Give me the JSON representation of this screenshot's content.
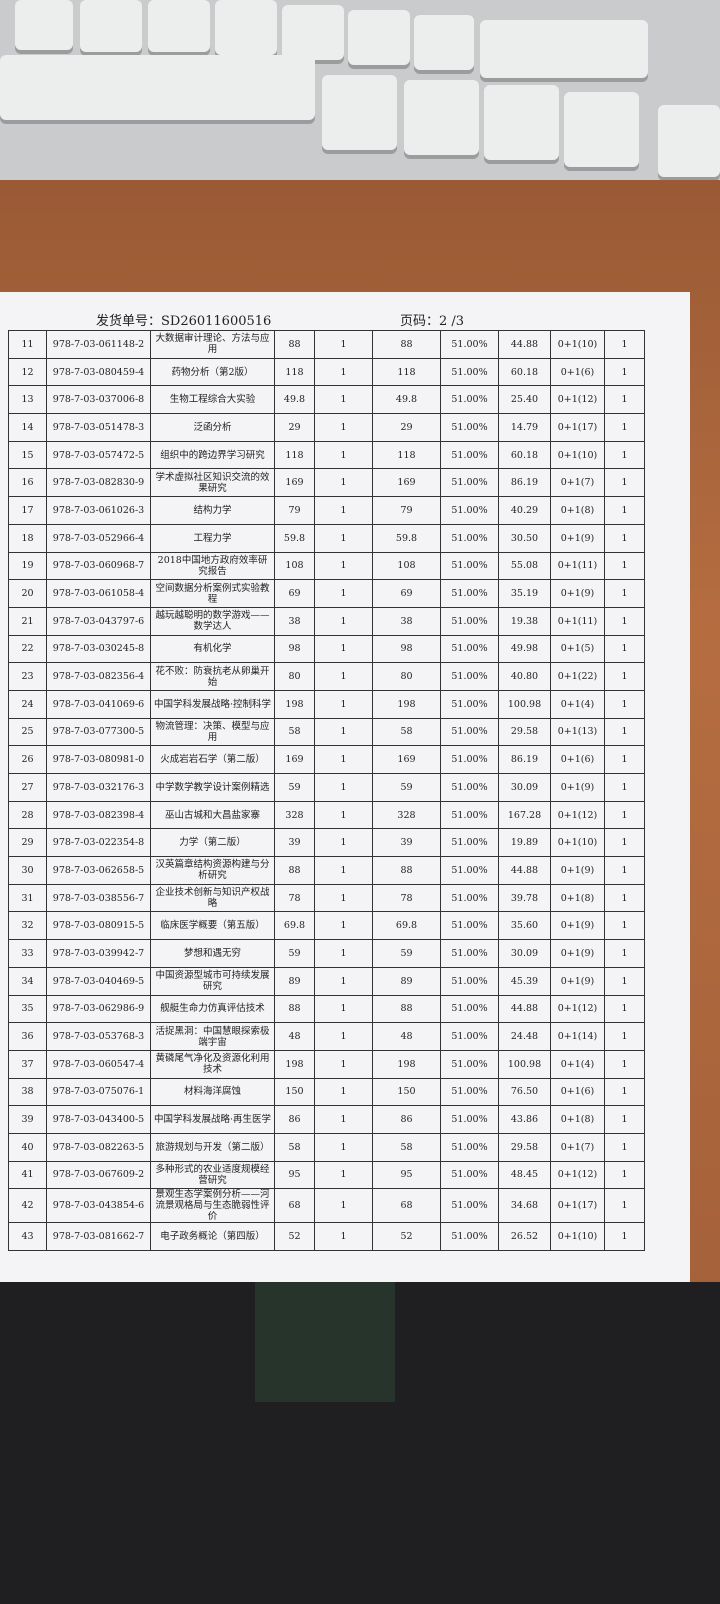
{
  "header": {
    "order_no": "发货单号：SD26011600516",
    "page": "页码：2 /3"
  },
  "table": {
    "rows": [
      [
        "11",
        "978-7-03-061148-2",
        "大数据审计理论、方法与应用",
        "88",
        "1",
        "88",
        "51.00%",
        "44.88",
        "0+1(10)",
        "1"
      ],
      [
        "12",
        "978-7-03-080459-4",
        "药物分析（第2版）",
        "118",
        "1",
        "118",
        "51.00%",
        "60.18",
        "0+1(6)",
        "1"
      ],
      [
        "13",
        "978-7-03-037006-8",
        "生物工程综合大实验",
        "49.8",
        "1",
        "49.8",
        "51.00%",
        "25.40",
        "0+1(12)",
        "1"
      ],
      [
        "14",
        "978-7-03-051478-3",
        "泛函分析",
        "29",
        "1",
        "29",
        "51.00%",
        "14.79",
        "0+1(17)",
        "1"
      ],
      [
        "15",
        "978-7-03-057472-5",
        "组织中的跨边界学习研究",
        "118",
        "1",
        "118",
        "51.00%",
        "60.18",
        "0+1(10)",
        "1"
      ],
      [
        "16",
        "978-7-03-082830-9",
        "学术虚拟社区知识交流的效果研究",
        "169",
        "1",
        "169",
        "51.00%",
        "86.19",
        "0+1(7)",
        "1"
      ],
      [
        "17",
        "978-7-03-061026-3",
        "结构力学",
        "79",
        "1",
        "79",
        "51.00%",
        "40.29",
        "0+1(8)",
        "1"
      ],
      [
        "18",
        "978-7-03-052966-4",
        "工程力学",
        "59.8",
        "1",
        "59.8",
        "51.00%",
        "30.50",
        "0+1(9)",
        "1"
      ],
      [
        "19",
        "978-7-03-060968-7",
        "2018中国地方政府效率研究报告",
        "108",
        "1",
        "108",
        "51.00%",
        "55.08",
        "0+1(11)",
        "1"
      ],
      [
        "20",
        "978-7-03-061058-4",
        "空间数据分析案例式实验教程",
        "69",
        "1",
        "69",
        "51.00%",
        "35.19",
        "0+1(9)",
        "1"
      ],
      [
        "21",
        "978-7-03-043797-6",
        "越玩越聪明的数学游戏——数学达人",
        "38",
        "1",
        "38",
        "51.00%",
        "19.38",
        "0+1(11)",
        "1"
      ],
      [
        "22",
        "978-7-03-030245-8",
        "有机化学",
        "98",
        "1",
        "98",
        "51.00%",
        "49.98",
        "0+1(5)",
        "1"
      ],
      [
        "23",
        "978-7-03-082356-4",
        "花不败：防衰抗老从卵巢开始",
        "80",
        "1",
        "80",
        "51.00%",
        "40.80",
        "0+1(22)",
        "1"
      ],
      [
        "24",
        "978-7-03-041069-6",
        "中国学科发展战略·控制科学",
        "198",
        "1",
        "198",
        "51.00%",
        "100.98",
        "0+1(4)",
        "1"
      ],
      [
        "25",
        "978-7-03-077300-5",
        "物流管理：决策、模型与应用",
        "58",
        "1",
        "58",
        "51.00%",
        "29.58",
        "0+1(13)",
        "1"
      ],
      [
        "26",
        "978-7-03-080981-0",
        "火成岩岩石学（第二版）",
        "169",
        "1",
        "169",
        "51.00%",
        "86.19",
        "0+1(6)",
        "1"
      ],
      [
        "27",
        "978-7-03-032176-3",
        "中学数学教学设计案例精选",
        "59",
        "1",
        "59",
        "51.00%",
        "30.09",
        "0+1(9)",
        "1"
      ],
      [
        "28",
        "978-7-03-082398-4",
        "巫山古城和大昌盐家寨",
        "328",
        "1",
        "328",
        "51.00%",
        "167.28",
        "0+1(12)",
        "1"
      ],
      [
        "29",
        "978-7-03-022354-8",
        "力学（第二版）",
        "39",
        "1",
        "39",
        "51.00%",
        "19.89",
        "0+1(10)",
        "1"
      ],
      [
        "30",
        "978-7-03-062658-5",
        "汉英篇章结构资源构建与分析研究",
        "88",
        "1",
        "88",
        "51.00%",
        "44.88",
        "0+1(9)",
        "1"
      ],
      [
        "31",
        "978-7-03-038556-7",
        "企业技术创新与知识产权战略",
        "78",
        "1",
        "78",
        "51.00%",
        "39.78",
        "0+1(8)",
        "1"
      ],
      [
        "32",
        "978-7-03-080915-5",
        "临床医学概要（第五版）",
        "69.8",
        "1",
        "69.8",
        "51.00%",
        "35.60",
        "0+1(9)",
        "1"
      ],
      [
        "33",
        "978-7-03-039942-7",
        "梦想和遇无穷",
        "59",
        "1",
        "59",
        "51.00%",
        "30.09",
        "0+1(9)",
        "1"
      ],
      [
        "34",
        "978-7-03-040469-5",
        "中国资源型城市可持续发展研究",
        "89",
        "1",
        "89",
        "51.00%",
        "45.39",
        "0+1(9)",
        "1"
      ],
      [
        "35",
        "978-7-03-062986-9",
        "舰艇生命力仿真评估技术",
        "88",
        "1",
        "88",
        "51.00%",
        "44.88",
        "0+1(12)",
        "1"
      ],
      [
        "36",
        "978-7-03-053768-3",
        "活捉黑洞：中国慧眼探索极端宇宙",
        "48",
        "1",
        "48",
        "51.00%",
        "24.48",
        "0+1(14)",
        "1"
      ],
      [
        "37",
        "978-7-03-060547-4",
        "黄磷尾气净化及资源化利用技术",
        "198",
        "1",
        "198",
        "51.00%",
        "100.98",
        "0+1(4)",
        "1"
      ],
      [
        "38",
        "978-7-03-075076-1",
        "材料海洋腐蚀",
        "150",
        "1",
        "150",
        "51.00%",
        "76.50",
        "0+1(6)",
        "1"
      ],
      [
        "39",
        "978-7-03-043400-5",
        "中国学科发展战略·再生医学",
        "86",
        "1",
        "86",
        "51.00%",
        "43.86",
        "0+1(8)",
        "1"
      ],
      [
        "40",
        "978-7-03-082263-5",
        "旅游规划与开发（第二版）",
        "58",
        "1",
        "58",
        "51.00%",
        "29.58",
        "0+1(7)",
        "1"
      ],
      [
        "41",
        "978-7-03-067609-2",
        "多种形式的农业适度规模经营研究",
        "95",
        "1",
        "95",
        "51.00%",
        "48.45",
        "0+1(12)",
        "1"
      ],
      [
        "42",
        "978-7-03-043854-6",
        "景观生态学案例分析——河流景观格局与生态脆弱性评价",
        "68",
        "1",
        "68",
        "51.00%",
        "34.68",
        "0+1(17)",
        "1"
      ],
      [
        "43",
        "978-7-03-081662-7",
        "电子政务概论（第四版）",
        "52",
        "1",
        "52",
        "51.00%",
        "26.52",
        "0+1(10)",
        "1"
      ]
    ]
  }
}
